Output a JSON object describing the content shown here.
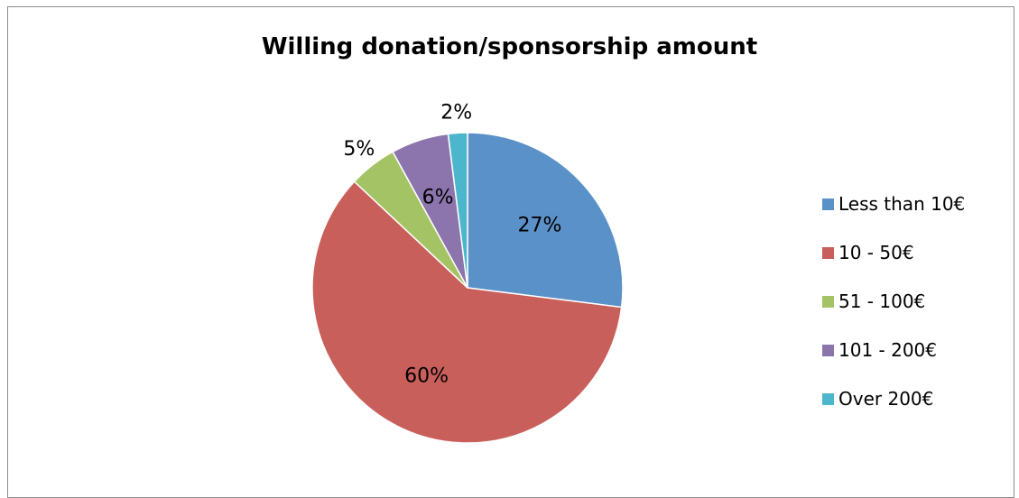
{
  "chart_data": {
    "type": "pie",
    "title": "Willing donation/sponsorship amount",
    "legend_position": "right",
    "slices": [
      {
        "label": "Less than 10€",
        "value": 27,
        "display": "27%",
        "color": "#5b91c9",
        "label_inside": true
      },
      {
        "label": "10 - 50€",
        "value": 60,
        "display": "60%",
        "color": "#c95f5b",
        "label_inside": true
      },
      {
        "label": "51 - 100€",
        "value": 5,
        "display": "5%",
        "color": "#a4c364",
        "label_inside": false
      },
      {
        "label": "101 - 200€",
        "value": 6,
        "display": "6%",
        "color": "#8c74ad",
        "label_inside": true
      },
      {
        "label": "Over 200€",
        "value": 2,
        "display": "2%",
        "color": "#4cb6cc",
        "label_inside": false
      }
    ]
  }
}
